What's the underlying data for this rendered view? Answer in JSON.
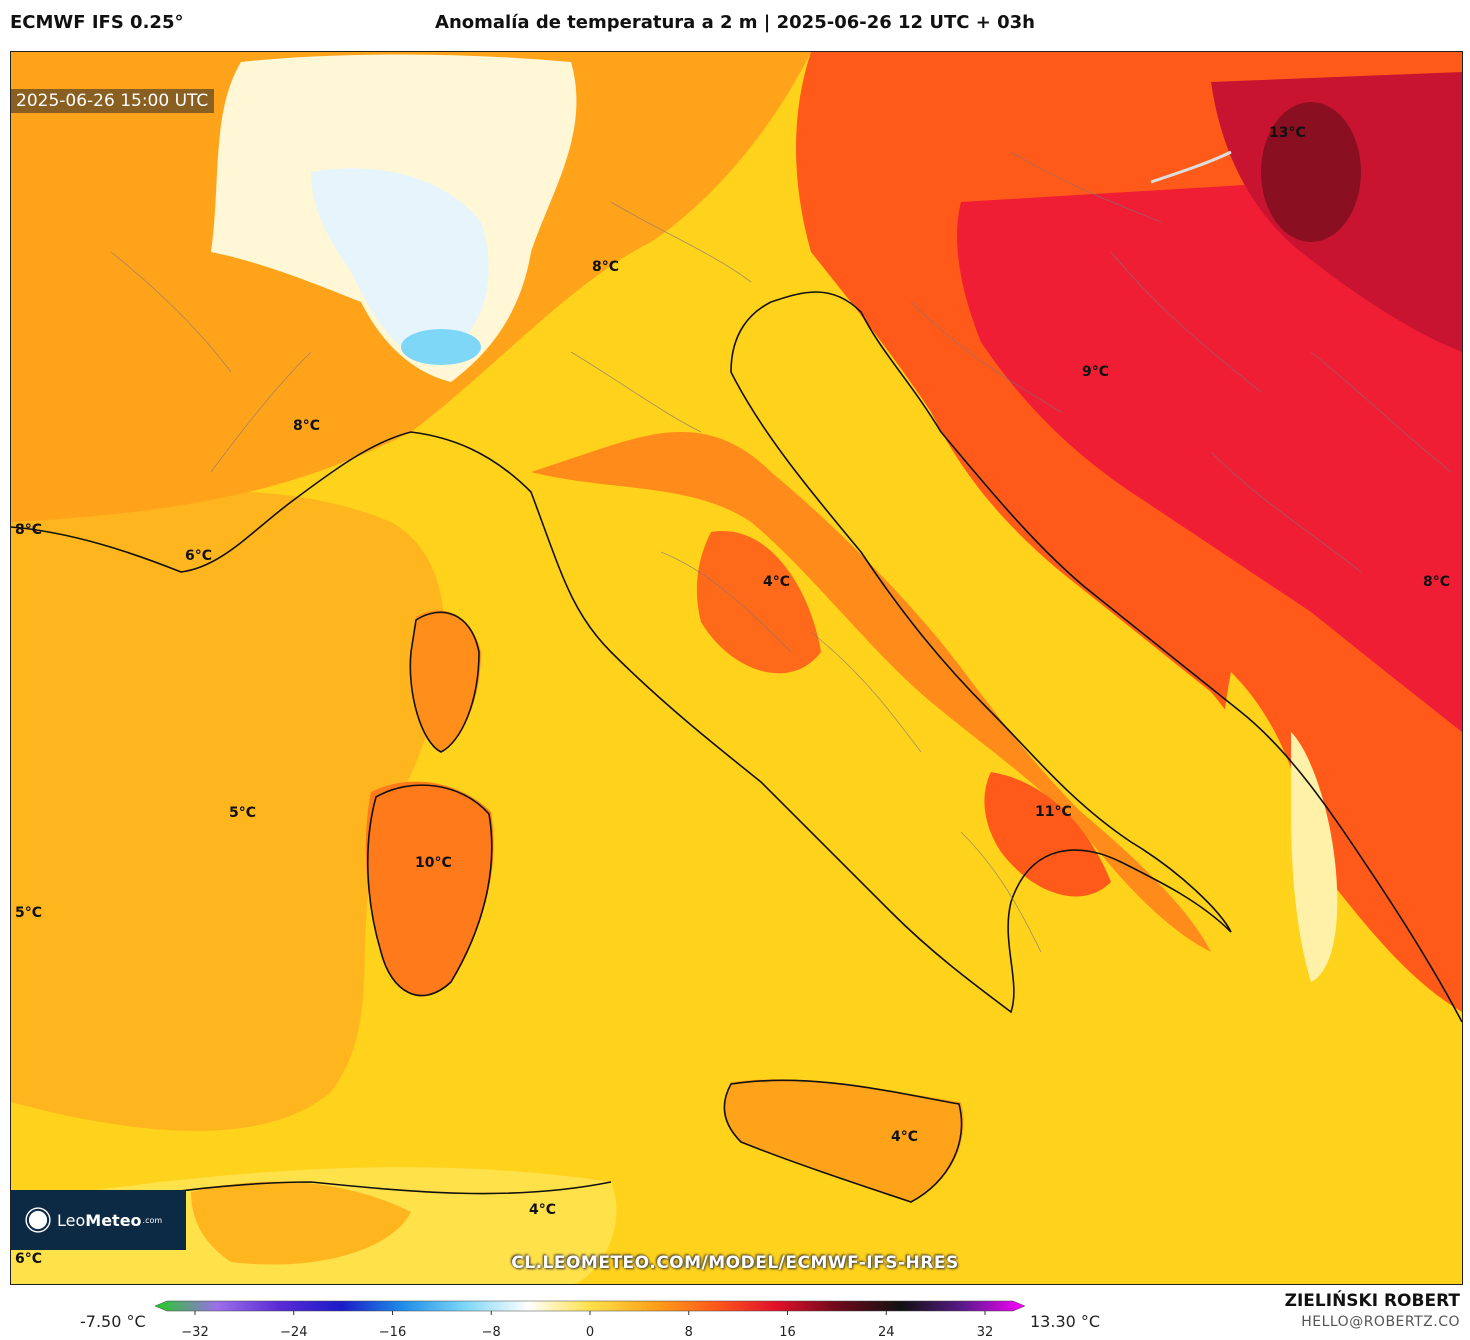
{
  "header": {
    "model": "ECMWF IFS 0.25°",
    "title": "Anomalía de temperatura a 2 m | 2025-06-26 12 UTC + 03h"
  },
  "timestamp": "2025-06-26 15:00 UTC",
  "map_labels": [
    {
      "text": "13°C"
    },
    {
      "text": "8°C"
    },
    {
      "text": "9°C"
    },
    {
      "text": "8°C"
    },
    {
      "text": "8°C"
    },
    {
      "text": "6°C"
    },
    {
      "text": "8°C"
    },
    {
      "text": "4°C"
    },
    {
      "text": "5°C"
    },
    {
      "text": "10°C"
    },
    {
      "text": "11°C"
    },
    {
      "text": "5°C"
    },
    {
      "text": "4°C"
    },
    {
      "text": "4°C"
    },
    {
      "text": "6°C"
    }
  ],
  "logo": {
    "part1": "Leo",
    "part2": "Meteo",
    "suffix": ".com"
  },
  "source_url": "CL.LEOMETEO.COM/MODEL/ECMWF-IFS-HRES",
  "colorbar": {
    "min_label": "-7.50 °C",
    "max_label": "13.30 °C",
    "ticks": [
      "−32",
      "−24",
      "−16",
      "−8",
      "0",
      "8",
      "16",
      "24",
      "32"
    ],
    "colors": [
      "#22cc22",
      "#9b6fe8",
      "#5a2bd6",
      "#1b1bc8",
      "#1f8fe8",
      "#7fd7f7",
      "#ffffff",
      "#ffe14a",
      "#ffa41a",
      "#ff5a1a",
      "#e0102a",
      "#6b0a1a",
      "#111111",
      "#5a1a8a",
      "#ff00ff"
    ]
  },
  "credits": {
    "author": "ZIELIŃSKI ROBERT",
    "email": "HELLO@ROBERTZ.CO"
  }
}
